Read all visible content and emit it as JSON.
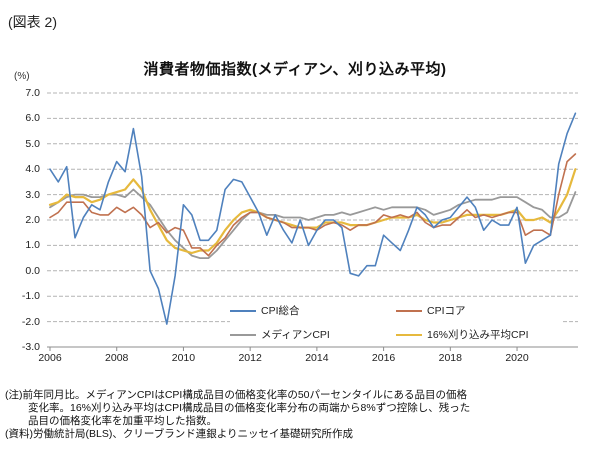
{
  "figure_label": "(図表 2)",
  "chart_data": {
    "type": "line",
    "title": "消費者物価指数(メディアン、刈り込み平均)",
    "unit_label": "(%)",
    "grid": "horizontal-dashed",
    "legend_position": "inside-bottom",
    "ylim": [
      -3.0,
      7.0
    ],
    "xlim": [
      2005.9,
      2021.9
    ],
    "y_ticks": [
      "7.0",
      "6.0",
      "5.0",
      "4.0",
      "3.0",
      "2.0",
      "1.0",
      "0.0",
      "-1.0",
      "-2.0",
      "-3.0"
    ],
    "x_ticks": [
      "2006",
      "2008",
      "2010",
      "2012",
      "2014",
      "2016",
      "2018",
      "2020"
    ],
    "x": [
      2006.0,
      2006.25,
      2006.5,
      2006.75,
      2007.0,
      2007.25,
      2007.5,
      2007.75,
      2008.0,
      2008.25,
      2008.5,
      2008.75,
      2009.0,
      2009.25,
      2009.5,
      2009.75,
      2010.0,
      2010.25,
      2010.5,
      2010.75,
      2011.0,
      2011.25,
      2011.5,
      2011.75,
      2012.0,
      2012.25,
      2012.5,
      2012.75,
      2013.0,
      2013.25,
      2013.5,
      2013.75,
      2014.0,
      2014.25,
      2014.5,
      2014.75,
      2015.0,
      2015.25,
      2015.5,
      2015.75,
      2016.0,
      2016.25,
      2016.5,
      2016.75,
      2017.0,
      2017.25,
      2017.5,
      2017.75,
      2018.0,
      2018.25,
      2018.5,
      2018.75,
      2019.0,
      2019.25,
      2019.5,
      2019.75,
      2020.0,
      2020.25,
      2020.5,
      2020.75,
      2021.0,
      2021.25,
      2021.5,
      2021.75
    ],
    "series": [
      {
        "key": "cpi-all",
        "name": "CPI総合",
        "color": "#4f81bd",
        "values": [
          4.0,
          3.5,
          4.1,
          1.3,
          2.1,
          2.6,
          2.4,
          3.5,
          4.3,
          3.9,
          5.6,
          3.7,
          0.0,
          -0.7,
          -2.1,
          -0.2,
          2.6,
          2.2,
          1.2,
          1.2,
          1.6,
          3.2,
          3.6,
          3.5,
          2.9,
          2.3,
          1.4,
          2.2,
          1.6,
          1.1,
          2.0,
          1.0,
          1.6,
          2.0,
          2.0,
          1.7,
          -0.1,
          -0.2,
          0.2,
          0.2,
          1.4,
          1.1,
          0.8,
          1.6,
          2.5,
          2.2,
          1.7,
          2.0,
          2.1,
          2.5,
          2.9,
          2.5,
          1.6,
          2.0,
          1.8,
          1.8,
          2.5,
          0.3,
          1.0,
          1.2,
          1.4,
          4.2,
          5.4,
          6.2
        ]
      },
      {
        "key": "cpi-core",
        "name": "CPIコア",
        "color": "#c0714f",
        "values": [
          2.1,
          2.3,
          2.7,
          2.7,
          2.7,
          2.3,
          2.2,
          2.2,
          2.5,
          2.3,
          2.5,
          2.2,
          1.7,
          1.9,
          1.5,
          1.7,
          1.6,
          0.9,
          0.9,
          0.6,
          1.0,
          1.3,
          1.8,
          2.1,
          2.3,
          2.3,
          2.1,
          2.0,
          1.9,
          1.7,
          1.7,
          1.7,
          1.6,
          1.8,
          1.9,
          1.8,
          1.6,
          1.8,
          1.8,
          1.9,
          2.2,
          2.1,
          2.2,
          2.1,
          2.3,
          1.9,
          1.7,
          1.8,
          1.8,
          2.1,
          2.4,
          2.1,
          2.2,
          2.1,
          2.2,
          2.3,
          2.3,
          1.4,
          1.6,
          1.6,
          1.4,
          3.0,
          4.3,
          4.6
        ]
      },
      {
        "key": "median-cpi",
        "name": "メディアンCPI",
        "color": "#999999",
        "values": [
          2.5,
          2.7,
          2.9,
          3.0,
          3.0,
          2.9,
          2.9,
          3.0,
          3.0,
          2.9,
          3.2,
          2.9,
          2.6,
          2.1,
          1.6,
          1.2,
          0.9,
          0.6,
          0.5,
          0.5,
          0.8,
          1.2,
          1.6,
          2.0,
          2.3,
          2.3,
          2.2,
          2.2,
          2.1,
          2.1,
          2.1,
          2.0,
          2.1,
          2.2,
          2.2,
          2.3,
          2.2,
          2.3,
          2.4,
          2.5,
          2.4,
          2.5,
          2.5,
          2.5,
          2.5,
          2.4,
          2.2,
          2.3,
          2.4,
          2.6,
          2.7,
          2.8,
          2.8,
          2.8,
          2.9,
          2.9,
          2.9,
          2.7,
          2.5,
          2.4,
          2.1,
          2.1,
          2.3,
          3.1
        ]
      },
      {
        "key": "trimmed-mean-cpi",
        "name": "16%刈り込み平均CPI",
        "color": "#e6b93d",
        "values": [
          2.6,
          2.7,
          3.0,
          2.9,
          2.9,
          2.7,
          2.8,
          3.0,
          3.1,
          3.2,
          3.6,
          3.2,
          2.4,
          1.8,
          1.2,
          0.9,
          0.8,
          0.7,
          0.8,
          0.8,
          1.1,
          1.6,
          2.0,
          2.3,
          2.4,
          2.3,
          2.1,
          2.0,
          1.9,
          1.8,
          1.7,
          1.7,
          1.7,
          1.9,
          1.9,
          1.9,
          1.8,
          1.8,
          1.8,
          1.9,
          2.0,
          2.1,
          2.1,
          2.1,
          2.2,
          2.0,
          1.9,
          1.9,
          2.0,
          2.1,
          2.2,
          2.2,
          2.2,
          2.2,
          2.2,
          2.3,
          2.4,
          2.0,
          2.0,
          2.1,
          1.9,
          2.4,
          3.0,
          4.0
        ]
      }
    ]
  },
  "notes": {
    "line1": "(注)前年同月比。メディアンCPIはCPI構成品目の価格変化率の50パーセンタイルにある品目の価格",
    "line2": "変化率。16%刈り込み平均はCPI構成品目の価格変化率分布の両端から8%ずつ控除し、残った",
    "line3": "品目の価格変化率を加重平均した指数。",
    "line4": "(資料)労働統計局(BLS)、クリーブランド連銀よりニッセイ基礎研究所作成"
  }
}
